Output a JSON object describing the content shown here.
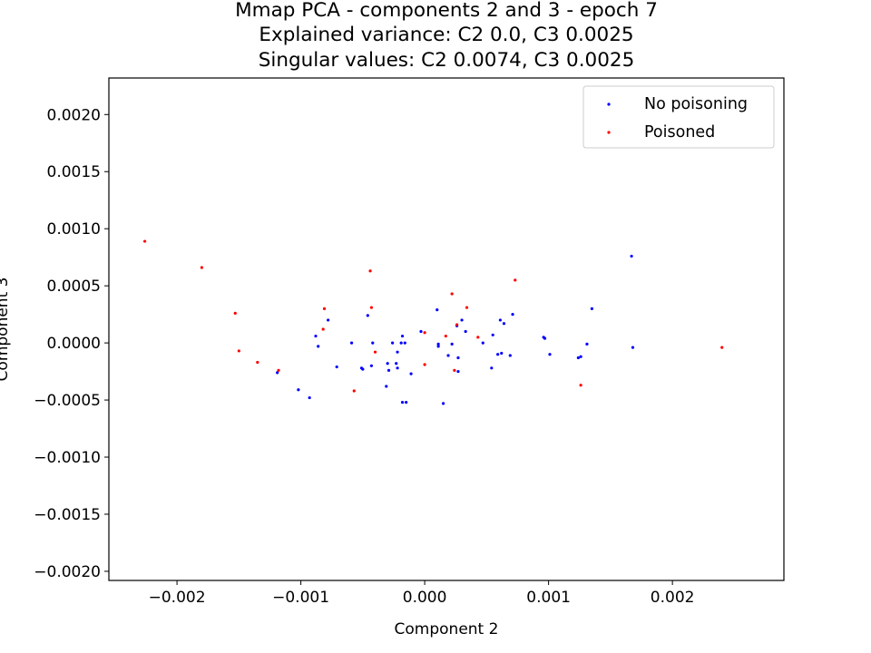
{
  "chart_data": {
    "type": "scatter",
    "title_lines": [
      "Mmap PCA - components 2 and 3 - epoch 7",
      "Explained variance: C2 0.0, C3 0.0025",
      "Singular values: C2 0.0074, C3 0.0025"
    ],
    "xlabel": "Component 2",
    "ylabel": "Component 3",
    "xlim": [
      -0.00255,
      0.0029
    ],
    "ylim": [
      -0.00208,
      0.00232
    ],
    "xticks": [
      {
        "value": -0.002,
        "label": "−0.002"
      },
      {
        "value": -0.001,
        "label": "−0.001"
      },
      {
        "value": 0.0,
        "label": "0.000"
      },
      {
        "value": 0.001,
        "label": "0.001"
      },
      {
        "value": 0.002,
        "label": "0.002"
      }
    ],
    "yticks": [
      {
        "value": -0.002,
        "label": "−0.0020"
      },
      {
        "value": -0.0015,
        "label": "−0.0015"
      },
      {
        "value": -0.001,
        "label": "−0.0010"
      },
      {
        "value": -0.0005,
        "label": "−0.0005"
      },
      {
        "value": 0.0,
        "label": "0.0000"
      },
      {
        "value": 0.0005,
        "label": "0.0005"
      },
      {
        "value": 0.001,
        "label": "0.0010"
      },
      {
        "value": 0.0015,
        "label": "0.0015"
      },
      {
        "value": 0.002,
        "label": "0.0020"
      }
    ],
    "grid": false,
    "legend_position": "top-right",
    "series": [
      {
        "name": "No poisoning",
        "color": "#0000ff",
        "points": [
          [
            -0.00119,
            -0.00026
          ],
          [
            -0.00102,
            -0.00041
          ],
          [
            -0.00093,
            -0.00048
          ],
          [
            -0.00088,
            6e-05
          ],
          [
            -0.00086,
            -3e-05
          ],
          [
            -0.00078,
            0.0002
          ],
          [
            -0.00071,
            -0.00021
          ],
          [
            -0.00059,
            0.0
          ],
          [
            -0.00051,
            -0.00022
          ],
          [
            -0.0005,
            -0.00023
          ],
          [
            -0.00046,
            0.00024
          ],
          [
            -0.00043,
            -0.0002
          ],
          [
            -0.00042,
            0.0
          ],
          [
            -0.00031,
            -0.00038
          ],
          [
            -0.0003,
            -0.00018
          ],
          [
            -0.00029,
            -0.00024
          ],
          [
            -0.00026,
            0.0
          ],
          [
            -0.00023,
            -0.00018
          ],
          [
            -0.00022,
            -0.00022
          ],
          [
            -0.00022,
            -8e-05
          ],
          [
            -0.00019,
            0.0
          ],
          [
            -0.00018,
            6e-05
          ],
          [
            -0.00018,
            -0.00052
          ],
          [
            -0.00016,
            0.0
          ],
          [
            -0.00015,
            -0.00052
          ],
          [
            -0.00011,
            -0.00027
          ],
          [
            -3e-05,
            0.0001
          ],
          [
            0.0001,
            0.00029
          ],
          [
            0.00011,
            -3e-05
          ],
          [
            0.00011,
            -1e-05
          ],
          [
            0.00015,
            -0.00053
          ],
          [
            0.00019,
            -0.00011
          ],
          [
            0.00022,
            -1e-05
          ],
          [
            0.00026,
            0.00015
          ],
          [
            0.00027,
            -0.00013
          ],
          [
            0.00027,
            -0.00025
          ],
          [
            0.0003,
            0.0002
          ],
          [
            0.00033,
            0.0001
          ],
          [
            0.00047,
            0.0
          ],
          [
            0.00054,
            -0.00022
          ],
          [
            0.00055,
            7e-05
          ],
          [
            0.00059,
            -0.0001
          ],
          [
            0.00061,
            0.0002
          ],
          [
            0.00062,
            -9e-05
          ],
          [
            0.00064,
            0.00017
          ],
          [
            0.00069,
            -0.00011
          ],
          [
            0.00071,
            0.00025
          ],
          [
            0.00096,
            5e-05
          ],
          [
            0.00097,
            4e-05
          ],
          [
            0.00101,
            -0.0001
          ],
          [
            0.00124,
            -0.00013
          ],
          [
            0.00126,
            -0.00012
          ],
          [
            0.00131,
            -1e-05
          ],
          [
            0.00135,
            0.0003
          ],
          [
            0.00167,
            0.00076
          ],
          [
            0.00168,
            -4e-05
          ]
        ]
      },
      {
        "name": "Poisoned",
        "color": "#ff0000",
        "points": [
          [
            -0.00226,
            0.00089
          ],
          [
            -0.0018,
            0.00066
          ],
          [
            -0.00153,
            0.00026
          ],
          [
            -0.0015,
            -7e-05
          ],
          [
            -0.00135,
            -0.00017
          ],
          [
            -0.00118,
            -0.00024
          ],
          [
            -0.00081,
            0.0003
          ],
          [
            -0.00082,
            0.00012
          ],
          [
            -0.00057,
            -0.00042
          ],
          [
            -0.00044,
            0.00063
          ],
          [
            -0.00043,
            0.00031
          ],
          [
            -0.0004,
            -8e-05
          ],
          [
            0.0,
            9e-05
          ],
          [
            0.0,
            -0.00019
          ],
          [
            0.00017,
            6e-05
          ],
          [
            0.00022,
            0.00043
          ],
          [
            0.00024,
            -0.00024
          ],
          [
            0.00026,
            0.00016
          ],
          [
            0.00034,
            0.00031
          ],
          [
            0.00043,
            5e-05
          ],
          [
            0.00073,
            0.00055
          ],
          [
            0.00126,
            -0.00037
          ],
          [
            0.0024,
            -4e-05
          ]
        ]
      }
    ]
  }
}
